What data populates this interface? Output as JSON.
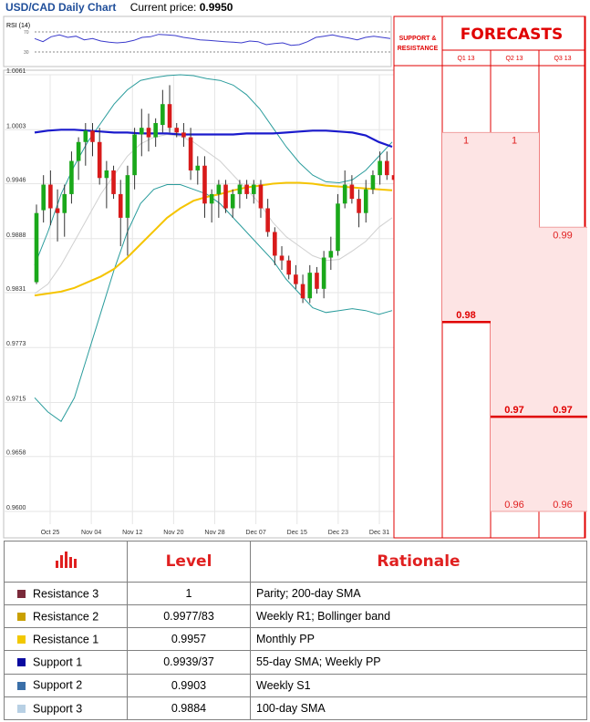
{
  "header": {
    "title": "USD/CAD Daily Chart",
    "current_price_label": "Current price:",
    "current_price_value": "0.9950"
  },
  "rsi_label": "RSI (14)",
  "rsi_ticks": [
    "70",
    "30"
  ],
  "chart_data": {
    "type": "candlestick",
    "title": "USD/CAD Daily Chart",
    "ylim": [
      0.96,
      1.0061
    ],
    "y_ticks": [
      1.0061,
      1.0003,
      0.9946,
      0.9888,
      0.9831,
      0.9773,
      0.9715,
      0.9658,
      0.96
    ],
    "y_tick_labels": [
      "1.0061",
      "1.0003",
      "0.9946",
      "0.9888",
      "0.9831",
      "0.9773",
      "0.9715",
      "0.9658",
      "0.9600"
    ],
    "x_tick_labels": [
      "Oct 25",
      "Nov 04",
      "Nov 12",
      "Nov 20",
      "Nov 28",
      "Dec 07",
      "Dec 15",
      "Dec 23",
      "Dec 31"
    ],
    "grid": true,
    "candles": [
      {
        "o": 0.9842,
        "h": 0.9924,
        "l": 0.984,
        "c": 0.9915
      },
      {
        "o": 0.9918,
        "h": 0.9955,
        "l": 0.9905,
        "c": 0.9945
      },
      {
        "o": 0.9945,
        "h": 0.996,
        "l": 0.9902,
        "c": 0.992
      },
      {
        "o": 0.992,
        "h": 0.994,
        "l": 0.9885,
        "c": 0.9915
      },
      {
        "o": 0.9915,
        "h": 0.9945,
        "l": 0.989,
        "c": 0.9935
      },
      {
        "o": 0.9935,
        "h": 0.998,
        "l": 0.9925,
        "c": 0.997
      },
      {
        "o": 0.997,
        "h": 0.9995,
        "l": 0.995,
        "c": 0.999
      },
      {
        "o": 0.999,
        "h": 1.001,
        "l": 0.9965,
        "c": 1.0002
      },
      {
        "o": 1.0002,
        "h": 1.001,
        "l": 0.9975,
        "c": 0.999
      },
      {
        "o": 0.999,
        "h": 1.0005,
        "l": 0.9945,
        "c": 0.9952
      },
      {
        "o": 0.9952,
        "h": 0.997,
        "l": 0.992,
        "c": 0.996
      },
      {
        "o": 0.996,
        "h": 0.9965,
        "l": 0.993,
        "c": 0.9935
      },
      {
        "o": 0.9935,
        "h": 0.995,
        "l": 0.988,
        "c": 0.991
      },
      {
        "o": 0.991,
        "h": 0.9965,
        "l": 0.987,
        "c": 0.9955
      },
      {
        "o": 0.9955,
        "h": 1.0005,
        "l": 0.994,
        "c": 0.9998
      },
      {
        "o": 0.9998,
        "h": 1.0025,
        "l": 0.9975,
        "c": 1.0005
      },
      {
        "o": 1.0005,
        "h": 1.002,
        "l": 0.998,
        "c": 0.9995
      },
      {
        "o": 0.9995,
        "h": 1.0015,
        "l": 0.9985,
        "c": 1.001
      },
      {
        "o": 1.0008,
        "h": 1.0045,
        "l": 1.0,
        "c": 1.003
      },
      {
        "o": 1.003,
        "h": 1.005,
        "l": 1.0,
        "c": 1.0005
      },
      {
        "o": 1.0005,
        "h": 1.001,
        "l": 0.9995,
        "c": 1.0
      },
      {
        "o": 1.0,
        "h": 1.001,
        "l": 0.9985,
        "c": 0.9995
      },
      {
        "o": 0.9995,
        "h": 1.0005,
        "l": 0.995,
        "c": 0.996
      },
      {
        "o": 0.996,
        "h": 0.9975,
        "l": 0.9945,
        "c": 0.9965
      },
      {
        "o": 0.9965,
        "h": 0.9975,
        "l": 0.991,
        "c": 0.9925
      },
      {
        "o": 0.9925,
        "h": 0.994,
        "l": 0.9905,
        "c": 0.9935
      },
      {
        "o": 0.9935,
        "h": 0.995,
        "l": 0.991,
        "c": 0.9945
      },
      {
        "o": 0.9945,
        "h": 0.995,
        "l": 0.9915,
        "c": 0.992
      },
      {
        "o": 0.992,
        "h": 0.994,
        "l": 0.991,
        "c": 0.9935
      },
      {
        "o": 0.9935,
        "h": 0.995,
        "l": 0.992,
        "c": 0.9945
      },
      {
        "o": 0.9945,
        "h": 0.995,
        "l": 0.993,
        "c": 0.9935
      },
      {
        "o": 0.9935,
        "h": 0.995,
        "l": 0.9925,
        "c": 0.9945
      },
      {
        "o": 0.9945,
        "h": 0.995,
        "l": 0.991,
        "c": 0.992
      },
      {
        "o": 0.992,
        "h": 0.993,
        "l": 0.989,
        "c": 0.9895
      },
      {
        "o": 0.9895,
        "h": 0.99,
        "l": 0.986,
        "c": 0.987
      },
      {
        "o": 0.987,
        "h": 0.988,
        "l": 0.9855,
        "c": 0.9865
      },
      {
        "o": 0.9865,
        "h": 0.987,
        "l": 0.9845,
        "c": 0.985
      },
      {
        "o": 0.985,
        "h": 0.986,
        "l": 0.9835,
        "c": 0.984
      },
      {
        "o": 0.984,
        "h": 0.985,
        "l": 0.982,
        "c": 0.9825
      },
      {
        "o": 0.9825,
        "h": 0.986,
        "l": 0.982,
        "c": 0.9852
      },
      {
        "o": 0.9852,
        "h": 0.9858,
        "l": 0.983,
        "c": 0.9835
      },
      {
        "o": 0.9835,
        "h": 0.9875,
        "l": 0.9825,
        "c": 0.9868
      },
      {
        "o": 0.9868,
        "h": 0.989,
        "l": 0.9855,
        "c": 0.9875
      },
      {
        "o": 0.9875,
        "h": 0.9935,
        "l": 0.987,
        "c": 0.9925
      },
      {
        "o": 0.9925,
        "h": 0.996,
        "l": 0.992,
        "c": 0.9945
      },
      {
        "o": 0.9945,
        "h": 0.9955,
        "l": 0.9925,
        "c": 0.993
      },
      {
        "o": 0.993,
        "h": 0.994,
        "l": 0.99,
        "c": 0.9915
      },
      {
        "o": 0.9915,
        "h": 0.995,
        "l": 0.9905,
        "c": 0.994
      },
      {
        "o": 0.994,
        "h": 0.996,
        "l": 0.9935,
        "c": 0.9955
      },
      {
        "o": 0.9955,
        "h": 0.998,
        "l": 0.9945,
        "c": 0.997
      },
      {
        "o": 0.997,
        "h": 0.998,
        "l": 0.995,
        "c": 0.9955
      },
      {
        "o": 0.9955,
        "h": 0.9965,
        "l": 0.9945,
        "c": 0.995
      }
    ],
    "series": [
      {
        "values": [
          0.986,
          0.9895,
          0.9935,
          0.9965,
          0.999,
          1.001,
          1.003,
          1.0045,
          1.0055,
          1.0058,
          1.006,
          1.0061,
          1.006,
          1.0057,
          1.0055,
          1.005,
          1.004,
          1.0025,
          1.0005,
          0.9985,
          0.9968,
          0.9955,
          0.9948,
          0.9947,
          0.995,
          0.996,
          0.9975,
          0.999
        ]
      },
      {
        "values": [
          0.972,
          0.9705,
          0.9695,
          0.972,
          0.9765,
          0.981,
          0.9855,
          0.9895,
          0.9925,
          0.994,
          0.9945,
          0.9945,
          0.994,
          0.9935,
          0.9925,
          0.991,
          0.9895,
          0.988,
          0.9865,
          0.9845,
          0.983,
          0.9815,
          0.981,
          0.9812,
          0.9814,
          0.9812,
          0.9808,
          0.9812
        ]
      },
      {
        "values": [
          0.983,
          0.984,
          0.986,
          0.9885,
          0.991,
          0.9935,
          0.9955,
          0.9975,
          0.9988,
          0.9995,
          0.9998,
          0.9996,
          0.999,
          0.998,
          0.997,
          0.9955,
          0.994,
          0.9925,
          0.9905,
          0.989,
          0.988,
          0.987,
          0.9865,
          0.9866,
          0.9875,
          0.9885,
          0.99,
          0.991
        ]
      },
      {
        "values": [
          1.0,
          1.0002,
          1.0003,
          1.0003,
          1.0002,
          1.0001,
          1.0,
          1.0,
          0.9999,
          0.9999,
          0.9999,
          0.9998,
          0.9998,
          0.9998,
          0.9998,
          0.9998,
          0.9999,
          0.9999,
          0.9999,
          1.0,
          1.0001,
          1.0002,
          1.0002,
          1.0001,
          1.0,
          0.9997,
          0.999,
          0.9985
        ]
      },
      {
        "values": [
          0.9828,
          0.983,
          0.9832,
          0.9836,
          0.9842,
          0.9848,
          0.9856,
          0.9868,
          0.9882,
          0.9896,
          0.991,
          0.992,
          0.9928,
          0.9932,
          0.9935,
          0.9939,
          0.9942,
          0.9944,
          0.9946,
          0.9947,
          0.9947,
          0.9946,
          0.9944,
          0.9943,
          0.9942,
          0.9941,
          0.994,
          0.9939
        ]
      }
    ],
    "levels": [
      {
        "label": "1.0000",
        "value": 1.0,
        "color": "#5a1428"
      },
      {
        "label": "0.9977",
        "value": 0.9977,
        "color": "#c9a000"
      },
      {
        "label": "0.9957",
        "value": 0.9957,
        "color": "#f2c800"
      },
      {
        "label": "0.9939",
        "value": 0.9939,
        "color": "#0a0aa0"
      },
      {
        "label": "0.9903",
        "value": 0.9903,
        "color": "#3a6fa8"
      },
      {
        "label": "0.9884",
        "value": 0.9884,
        "color": "#a7c4d9"
      }
    ],
    "rsi_values": [
      60,
      55,
      63,
      66,
      62,
      64,
      58,
      60,
      56,
      54,
      53,
      54,
      57,
      62,
      63,
      67,
      66,
      65,
      62,
      60,
      58,
      57,
      56,
      55,
      54,
      53,
      56,
      55,
      50,
      52,
      53,
      49,
      50,
      55,
      62,
      64,
      66,
      63,
      61,
      58,
      62,
      64,
      62,
      60
    ],
    "forecasts": {
      "title": "FORECASTS",
      "support_label": "SUPPORT & RESISTANCE",
      "columns": [
        "Q1 13",
        "Q2 13",
        "Q3 13"
      ],
      "q1": {
        "high": "1",
        "low": "0.98",
        "high_value": 1.0,
        "low_value": 0.98
      },
      "q2": {
        "high": "1",
        "low": "0.96",
        "mid": "0.97",
        "high_value": 1.0,
        "low_value": 0.96,
        "mid_value": 0.97
      },
      "q3": {
        "high": "0.99",
        "low": "0.96",
        "mid": "0.97",
        "high_value": 0.99,
        "low_value": 0.96,
        "mid_value": 0.97
      }
    }
  },
  "table": {
    "headers": [
      "Level",
      "Rationale"
    ],
    "rows": [
      {
        "name": "Resistance 3",
        "color": "#7a2a3a",
        "level": "1",
        "rationale": "Parity; 200-day SMA"
      },
      {
        "name": "Resistance 2",
        "color": "#c9a000",
        "level": "0.9977/83",
        "rationale": "Weekly R1; Bollinger band"
      },
      {
        "name": "Resistance 1",
        "color": "#f2c800",
        "level": "0.9957",
        "rationale": "Monthly PP"
      },
      {
        "name": "Support 1",
        "color": "#0a0aa0",
        "level": "0.9939/37",
        "rationale": "55-day SMA; Weekly PP"
      },
      {
        "name": "Support 2",
        "color": "#3a6fa8",
        "level": "0.9903",
        "rationale": "Weekly  S1"
      },
      {
        "name": "Support 3",
        "color": "#b8d0e4",
        "level": "0.9884",
        "rationale": "100-day SMA"
      }
    ]
  }
}
